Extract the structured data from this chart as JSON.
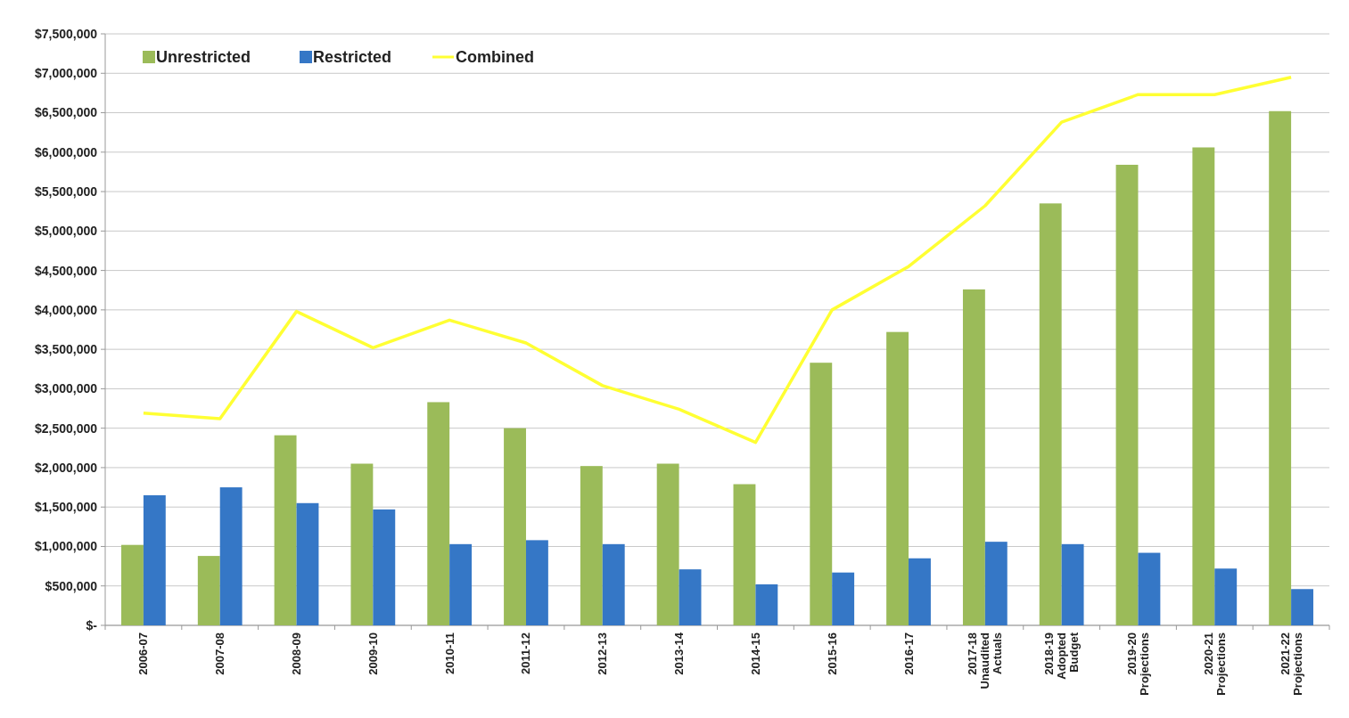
{
  "chart_data": {
    "type": "bar",
    "categories": [
      "2006-07",
      "2007-08",
      "2008-09",
      "2009-10",
      "2010-11",
      "2011-12",
      "2012-13",
      "2013-14",
      "2014-15",
      "2015-16",
      "2016-17",
      "2017-18\nUnaudited\nActuals",
      "2018-19\nAdopted\nBudget",
      "2019-20\nProjections",
      "2020-21\nProjections",
      "2021-22\nProjections"
    ],
    "series": [
      {
        "name": "Unrestricted",
        "color": "#9bbb59",
        "values": [
          1020000,
          880000,
          2410000,
          2050000,
          2830000,
          2500000,
          2020000,
          2050000,
          1790000,
          3330000,
          3720000,
          4260000,
          5350000,
          5840000,
          6060000,
          6520000
        ]
      },
      {
        "name": "Restricted",
        "color": "#3577c6",
        "values": [
          1650000,
          1750000,
          1550000,
          1470000,
          1030000,
          1080000,
          1030000,
          710000,
          520000,
          670000,
          850000,
          1060000,
          1030000,
          920000,
          720000,
          460000
        ]
      },
      {
        "name": "Combined",
        "type": "line",
        "color": "#ffff33",
        "values": [
          2690000,
          2620000,
          3980000,
          3520000,
          3870000,
          3580000,
          3040000,
          2740000,
          2320000,
          4000000,
          4550000,
          5320000,
          6380000,
          6730000,
          6730000,
          6950000
        ]
      }
    ],
    "ylim": [
      0,
      7500000
    ],
    "yticks": [
      {
        "value": 0,
        "label": "$-"
      },
      {
        "value": 500000,
        "label": "$500,000"
      },
      {
        "value": 1000000,
        "label": "$1,000,000"
      },
      {
        "value": 1500000,
        "label": "$1,500,000"
      },
      {
        "value": 2000000,
        "label": "$2,000,000"
      },
      {
        "value": 2500000,
        "label": "$2,500,000"
      },
      {
        "value": 3000000,
        "label": "$3,000,000"
      },
      {
        "value": 3500000,
        "label": "$3,500,000"
      },
      {
        "value": 4000000,
        "label": "$4,000,000"
      },
      {
        "value": 4500000,
        "label": "$4,500,000"
      },
      {
        "value": 5000000,
        "label": "$5,000,000"
      },
      {
        "value": 5500000,
        "label": "$5,500,000"
      },
      {
        "value": 6000000,
        "label": "$6,000,000"
      },
      {
        "value": 6500000,
        "label": "$6,500,000"
      },
      {
        "value": 7000000,
        "label": "$7,000,000"
      },
      {
        "value": 7500000,
        "label": "$7,500,000"
      }
    ],
    "grid": "y",
    "legend": "top left",
    "marker": "none"
  }
}
